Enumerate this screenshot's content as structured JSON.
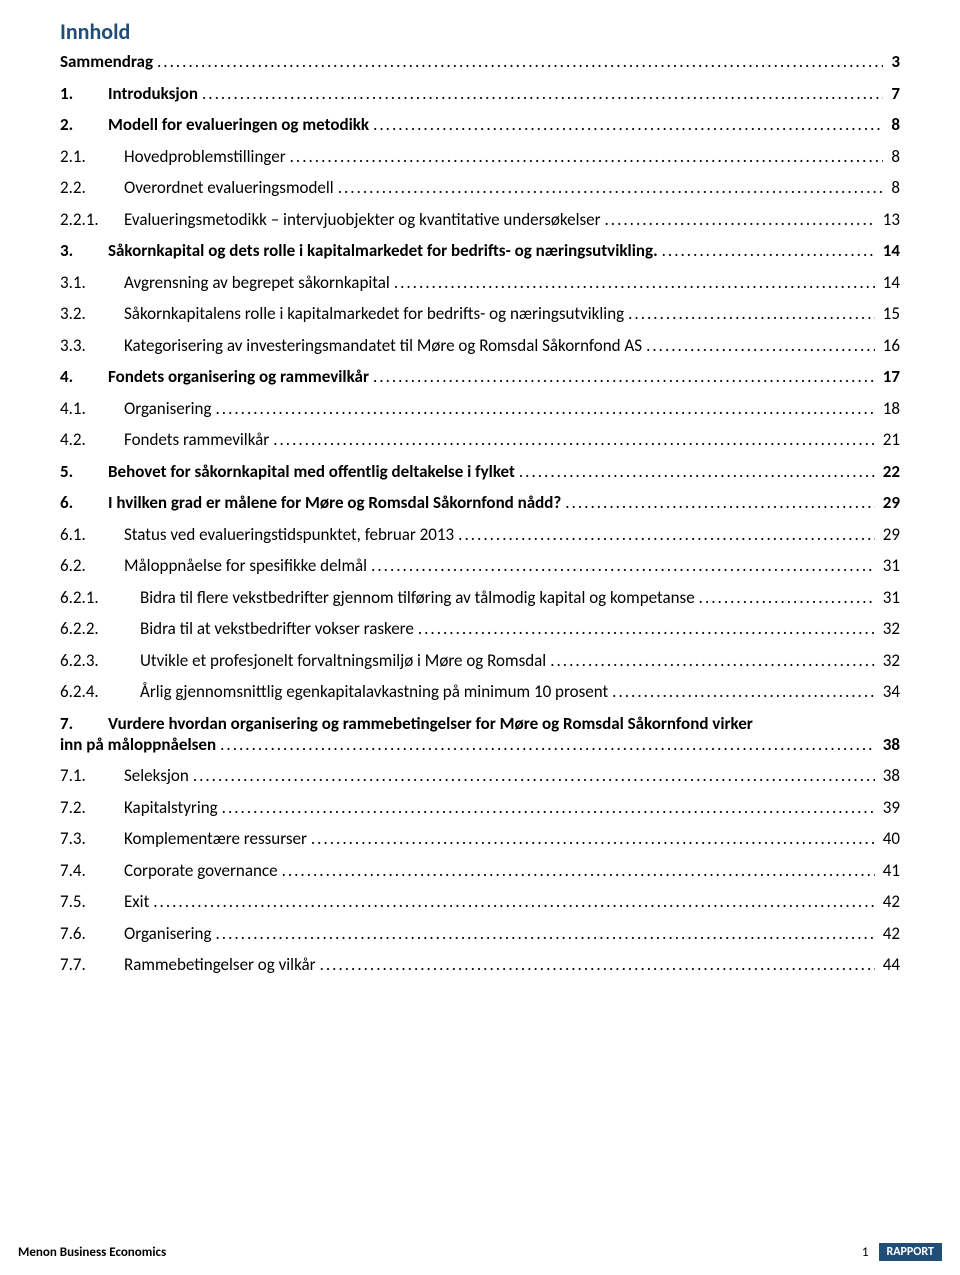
{
  "title": "Innhold",
  "colors": {
    "heading": "#1f4e79",
    "text": "#000000",
    "badge_bg": "#1f4e79",
    "badge_fg": "#ffffff",
    "background": "#ffffff"
  },
  "toc": [
    {
      "num": "",
      "text": "Sammendrag",
      "page": "3",
      "bold": true,
      "indent": 0
    },
    {
      "num": "1.",
      "text": "Introduksjon",
      "page": "7",
      "bold": true,
      "indent": 0
    },
    {
      "num": "2.",
      "text": "Modell for evalueringen og metodikk",
      "page": "8",
      "bold": true,
      "indent": 0
    },
    {
      "num": "2.1.",
      "text": "Hovedproblemstillinger",
      "page": "8",
      "bold": false,
      "indent": 1
    },
    {
      "num": "2.2.",
      "text": "Overordnet evalueringsmodell",
      "page": "8",
      "bold": false,
      "indent": 1
    },
    {
      "num": "2.2.1.",
      "text": "Evalueringsmetodikk – intervjuobjekter og kvantitative undersøkelser",
      "page": "13",
      "bold": false,
      "indent": 1
    },
    {
      "num": "3.",
      "text": "Såkornkapital og dets rolle i kapitalmarkedet for bedrifts- og næringsutvikling.",
      "page": "14",
      "bold": true,
      "indent": 0
    },
    {
      "num": "3.1.",
      "text": "Avgrensning av begrepet såkornkapital",
      "page": "14",
      "bold": false,
      "indent": 1
    },
    {
      "num": "3.2.",
      "text": "Såkornkapitalens rolle i kapitalmarkedet for bedrifts- og næringsutvikling",
      "page": "15",
      "bold": false,
      "indent": 1
    },
    {
      "num": "3.3.",
      "text": "Kategorisering av investeringsmandatet til Møre og Romsdal Såkornfond AS",
      "page": "16",
      "bold": false,
      "indent": 1
    },
    {
      "num": "4.",
      "text": "Fondets organisering og rammevilkår",
      "page": "17",
      "bold": true,
      "indent": 0
    },
    {
      "num": "4.1.",
      "text": "Organisering",
      "page": "18",
      "bold": false,
      "indent": 1
    },
    {
      "num": "4.2.",
      "text": "Fondets rammevilkår",
      "page": "21",
      "bold": false,
      "indent": 1
    },
    {
      "num": "5.",
      "text": "Behovet for såkornkapital med offentlig deltakelse i fylket",
      "page": "22",
      "bold": true,
      "indent": 0
    },
    {
      "num": "6.",
      "text": "I hvilken grad er målene for Møre og Romsdal Såkornfond nådd?",
      "page": "29",
      "bold": true,
      "indent": 0
    },
    {
      "num": "6.1.",
      "text": "Status ved evalueringstidspunktet, februar 2013",
      "page": "29",
      "bold": false,
      "indent": 1
    },
    {
      "num": "6.2.",
      "text": "Måloppnåelse for spesifikke delmål",
      "page": "31",
      "bold": false,
      "indent": 1
    },
    {
      "num": "6.2.1.",
      "text": "Bidra til flere vekstbedrifter gjennom tilføring av tålmodig kapital og kompetanse",
      "page": "31",
      "bold": false,
      "indent": 2
    },
    {
      "num": "6.2.2.",
      "text": "Bidra til at vekstbedrifter vokser raskere",
      "page": "32",
      "bold": false,
      "indent": 2
    },
    {
      "num": "6.2.3.",
      "text": "Utvikle et profesjonelt forvaltningsmiljø i Møre og Romsdal",
      "page": "32",
      "bold": false,
      "indent": 2
    },
    {
      "num": "6.2.4.",
      "text": "Årlig gjennomsnittlig egenkapitalavkastning på minimum 10 prosent",
      "page": "34",
      "bold": false,
      "indent": 2
    },
    {
      "num": "7.",
      "text": "Vurdere hvordan organisering og rammebetingelser for Møre og Romsdal Såkornfond virker inn på måloppnåelsen",
      "page": "38",
      "bold": true,
      "indent": 0,
      "wrap": true
    },
    {
      "num": "7.1.",
      "text": "Seleksjon",
      "page": "38",
      "bold": false,
      "indent": 1
    },
    {
      "num": "7.2.",
      "text": "Kapitalstyring",
      "page": "39",
      "bold": false,
      "indent": 1
    },
    {
      "num": "7.3.",
      "text": "Komplementære ressurser",
      "page": "40",
      "bold": false,
      "indent": 1
    },
    {
      "num": "7.4.",
      "text": "Corporate governance",
      "page": "41",
      "bold": false,
      "indent": 1
    },
    {
      "num": "7.5.",
      "text": "Exit",
      "page": "42",
      "bold": false,
      "indent": 1
    },
    {
      "num": "7.6.",
      "text": "Organisering",
      "page": "42",
      "bold": false,
      "indent": 1
    },
    {
      "num": "7.7.",
      "text": "Rammebetingelser og vilkår",
      "page": "44",
      "bold": false,
      "indent": 1
    }
  ],
  "wrap_entry": {
    "line1": "Vurdere hvordan organisering og rammebetingelser for Møre og Romsdal Såkornfond virker",
    "line2": "inn på måloppnåelsen"
  },
  "footer": {
    "left": "Menon Business Economics",
    "page": "1",
    "badge": "RAPPORT"
  }
}
